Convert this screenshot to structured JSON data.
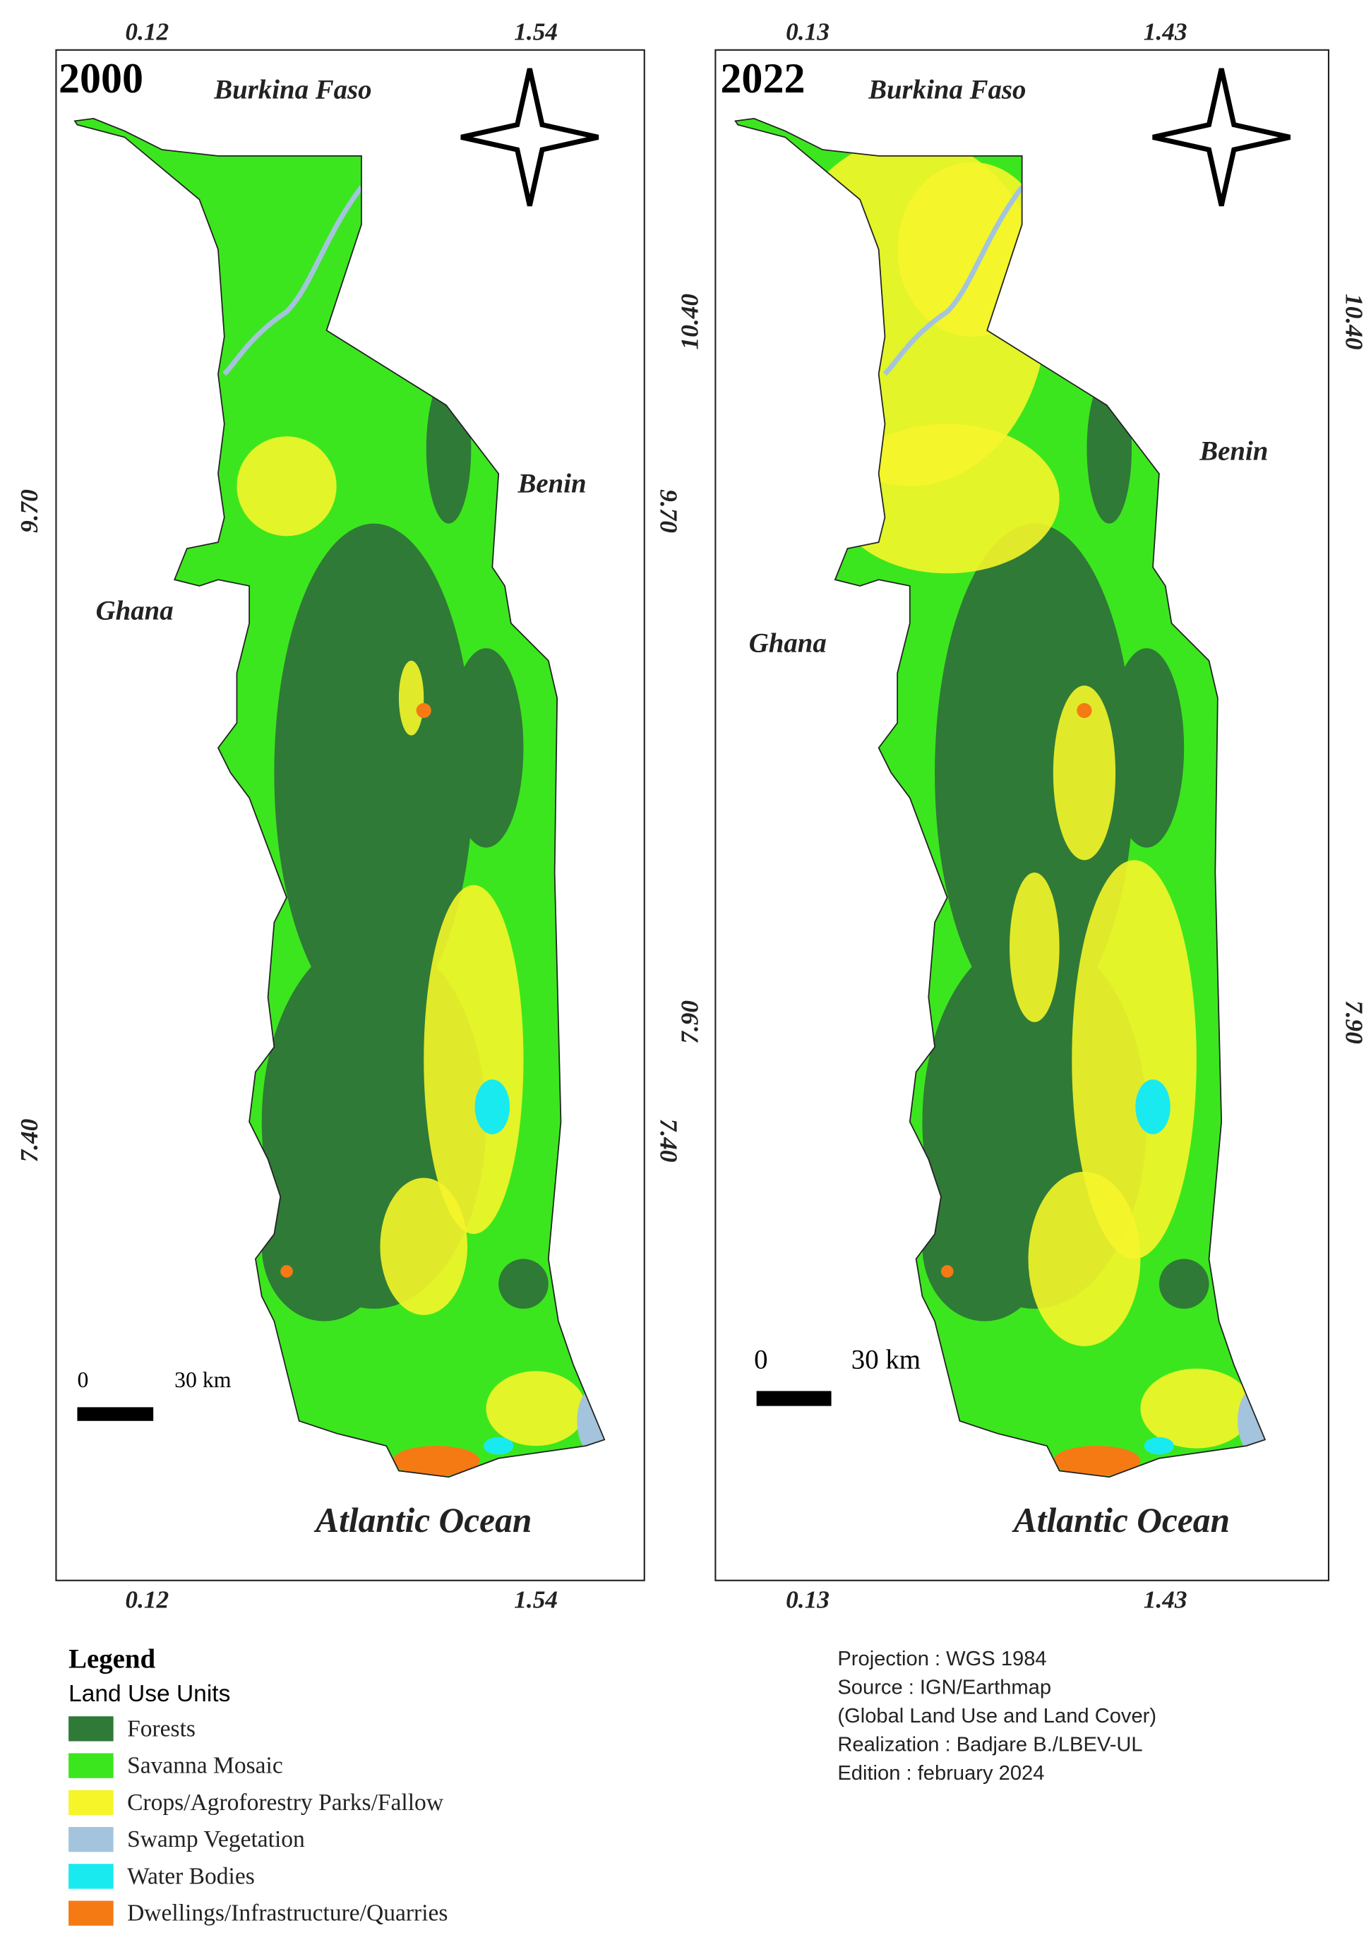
{
  "maps": [
    {
      "year": "2000",
      "top_ticks": [
        "0.12",
        "1.54"
      ],
      "bottom_ticks": [
        "0.12",
        "1.54"
      ],
      "left_ticks": [
        "9.70",
        "7.40"
      ],
      "right_ticks": [
        "9.70",
        "7.40"
      ],
      "labels": {
        "north": "Burkina Faso",
        "east": "Benin",
        "west": "Ghana",
        "south": "Atlantic Ocean"
      },
      "scale": {
        "start": "0",
        "end": "30 km"
      }
    },
    {
      "year": "2022",
      "top_ticks": [
        "0.13",
        "1.43"
      ],
      "bottom_ticks": [
        "0.13",
        "1.43"
      ],
      "left_ticks": [
        "10.40",
        "7.90"
      ],
      "right_ticks": [
        "10.40",
        "7.90"
      ],
      "labels": {
        "north": "Burkina Faso",
        "east": "Benin",
        "west": "Ghana",
        "south": "Atlantic Ocean"
      },
      "scale": {
        "start": "0",
        "end": "30 km"
      }
    }
  ],
  "legend": {
    "title": "Legend",
    "subtitle": "Land Use Units",
    "items": [
      {
        "label": "Forests",
        "color": "#2f7a37"
      },
      {
        "label": "Savanna Mosaic",
        "color": "#3ce61e"
      },
      {
        "label": "Crops/Agroforestry Parks/Fallow",
        "color": "#f5f52a"
      },
      {
        "label": "Swamp Vegetation",
        "color": "#a3c4dc"
      },
      {
        "label": "Water Bodies",
        "color": "#19eaf0"
      },
      {
        "label": "Dwellings/Infrastructure/Quarries",
        "color": "#f57a14"
      }
    ]
  },
  "info": [
    "Projection : WGS 1984",
    "Source : IGN/Earthmap",
    "(Global Land Use and Land Cover)",
    "Realization : Badjare B./LBEV-UL",
    "Edition : february 2024"
  ]
}
